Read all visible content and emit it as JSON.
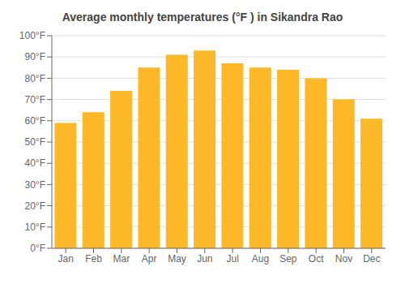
{
  "chart_data": {
    "type": "bar",
    "title": "Average monthly temperatures (°F ) in Sikandra Rao",
    "categories": [
      "Jan",
      "Feb",
      "Mar",
      "Apr",
      "May",
      "Jun",
      "Jul",
      "Aug",
      "Sep",
      "Oct",
      "Nov",
      "Dec"
    ],
    "values": [
      59,
      64,
      74,
      85,
      91,
      93,
      87,
      85,
      84,
      80,
      70,
      61
    ],
    "color": "#FDB827",
    "ylim": [
      0,
      100
    ],
    "yticks": [
      {
        "value": 0,
        "label": "0°F"
      },
      {
        "value": 10,
        "label": "10°F"
      },
      {
        "value": 20,
        "label": "20°F"
      },
      {
        "value": 30,
        "label": "30°F"
      },
      {
        "value": 40,
        "label": "40°F"
      },
      {
        "value": 50,
        "label": "50°F"
      },
      {
        "value": 60,
        "label": "60°F"
      },
      {
        "value": 70,
        "label": "70°F"
      },
      {
        "value": 80,
        "label": "80°F"
      },
      {
        "value": 90,
        "label": "90°F"
      },
      {
        "value": 100,
        "label": "100°F"
      }
    ],
    "grid": true
  }
}
